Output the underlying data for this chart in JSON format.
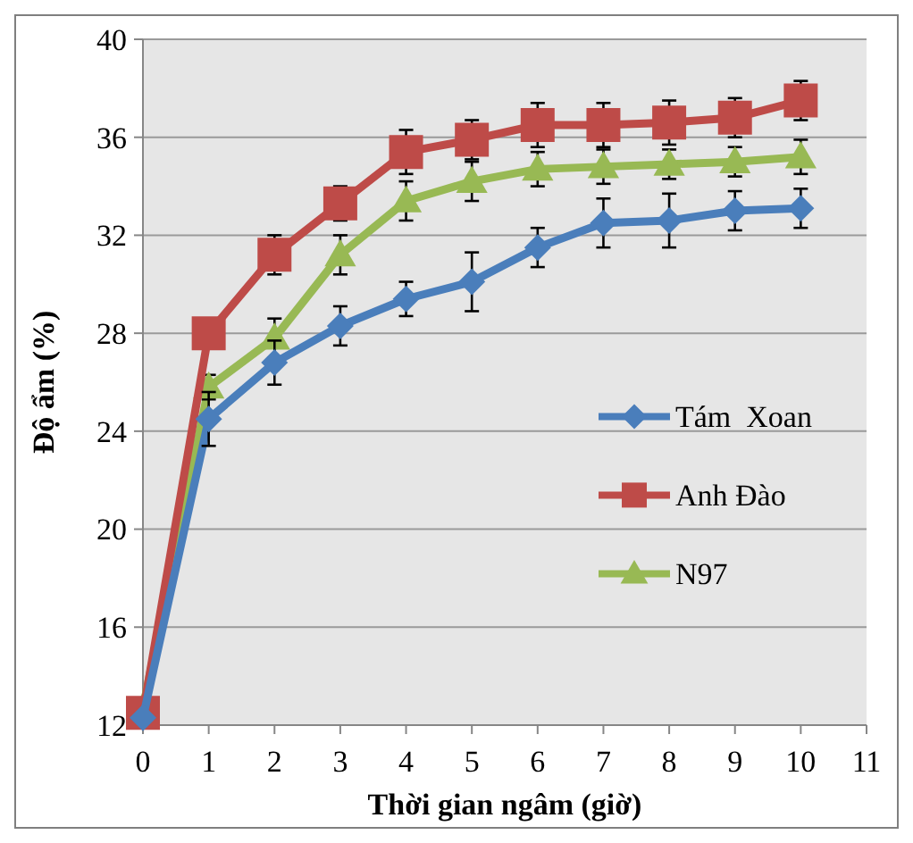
{
  "chart_data": {
    "type": "line",
    "xlabel": "Thời gian ngâm (giờ)",
    "ylabel": "Độ ẩm (%)",
    "x": [
      0,
      1,
      2,
      3,
      4,
      5,
      6,
      7,
      8,
      9,
      10
    ],
    "xlim": [
      0,
      11
    ],
    "xticks": [
      0,
      1,
      2,
      3,
      4,
      5,
      6,
      7,
      8,
      9,
      10,
      11
    ],
    "ylim": [
      12,
      40
    ],
    "yticks": [
      12,
      16,
      20,
      24,
      28,
      32,
      36,
      40
    ],
    "grid": "y",
    "legend": "right",
    "series": [
      {
        "name": "Tám  Xoan",
        "color": "#4a7ebb",
        "marker": "diamond",
        "values": [
          12.3,
          24.5,
          26.8,
          28.3,
          29.4,
          30.1,
          31.5,
          32.5,
          32.6,
          33.0,
          33.1
        ],
        "errors": [
          null,
          1.1,
          0.9,
          0.8,
          0.7,
          1.2,
          0.8,
          1.0,
          1.1,
          0.8,
          0.8
        ]
      },
      {
        "name": "Anh Đào",
        "color": "#be4b48",
        "marker": "square",
        "values": [
          12.5,
          28.0,
          31.2,
          33.3,
          35.4,
          35.9,
          36.5,
          36.5,
          36.6,
          36.8,
          37.5
        ],
        "errors": [
          null,
          null,
          0.8,
          0.7,
          0.9,
          0.8,
          0.9,
          0.9,
          0.9,
          0.8,
          0.8
        ]
      },
      {
        "name": "N97",
        "color": "#98b954",
        "marker": "triangle",
        "values": [
          12.7,
          25.8,
          27.8,
          31.2,
          33.4,
          34.2,
          34.7,
          34.8,
          34.9,
          35.0,
          35.2
        ],
        "errors": [
          null,
          0.5,
          0.8,
          0.8,
          0.8,
          0.8,
          0.7,
          0.7,
          0.6,
          0.6,
          0.7
        ]
      }
    ]
  }
}
